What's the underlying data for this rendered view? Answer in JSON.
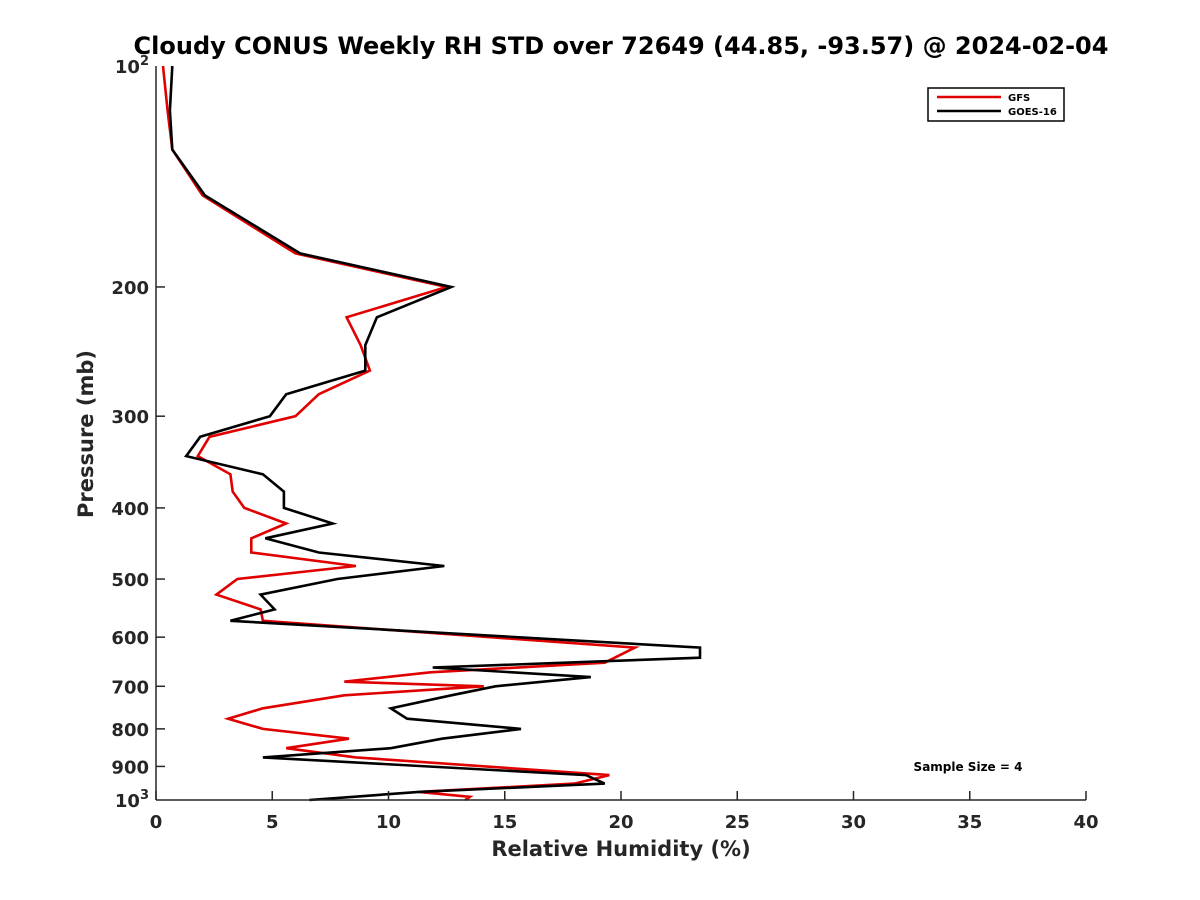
{
  "chart_data": {
    "type": "line",
    "title": "Cloudy CONUS Weekly RH STD over 72649 (44.85, -93.57) @ 2024-02-04",
    "xlabel": "Relative Humidity (%)",
    "ylabel": "Pressure (mb)",
    "xlim": [
      0,
      40
    ],
    "ylim": [
      100,
      1000
    ],
    "y_scale": "log",
    "y_reversed": true,
    "x_ticks": [
      0,
      5,
      10,
      15,
      20,
      25,
      30,
      35,
      40
    ],
    "y_ticks": [
      200,
      300,
      400,
      500,
      600,
      700,
      800,
      900
    ],
    "y_tick_labels": [
      "200",
      "300",
      "400",
      "500",
      "600",
      "700",
      "800",
      "900"
    ],
    "y_min_label": {
      "base": "10",
      "exp": "2"
    },
    "y_max_label": {
      "base": "10",
      "exp": "3"
    },
    "grid": false,
    "legend_position": "top-right",
    "annotation": "Sample Size = 4",
    "series": [
      {
        "name": "GFS",
        "color": "#e00000",
        "points": [
          [
            0.3,
            100
          ],
          [
            0.5,
            115
          ],
          [
            0.7,
            130
          ],
          [
            2.0,
            150
          ],
          [
            6.0,
            180
          ],
          [
            12.5,
            200
          ],
          [
            8.2,
            220
          ],
          [
            8.8,
            240
          ],
          [
            9.2,
            260
          ],
          [
            7.0,
            280
          ],
          [
            6.0,
            300
          ],
          [
            2.3,
            320
          ],
          [
            1.8,
            340
          ],
          [
            3.2,
            360
          ],
          [
            3.3,
            380
          ],
          [
            3.8,
            400
          ],
          [
            5.6,
            420
          ],
          [
            4.1,
            440
          ],
          [
            4.1,
            460
          ],
          [
            8.6,
            480
          ],
          [
            3.5,
            500
          ],
          [
            2.6,
            525
          ],
          [
            4.5,
            550
          ],
          [
            4.6,
            570
          ],
          [
            20.6,
            620
          ],
          [
            19.3,
            650
          ],
          [
            11.8,
            670
          ],
          [
            8.1,
            690
          ],
          [
            14.1,
            700
          ],
          [
            8.1,
            720
          ],
          [
            4.6,
            750
          ],
          [
            3.1,
            775
          ],
          [
            4.6,
            800
          ],
          [
            8.3,
            825
          ],
          [
            5.6,
            850
          ],
          [
            8.6,
            875
          ],
          [
            19.5,
            925
          ],
          [
            18.0,
            950
          ],
          [
            11.3,
            975
          ],
          [
            13.5,
            990
          ],
          [
            13.3,
            1000
          ]
        ]
      },
      {
        "name": "GOES-16",
        "color": "#000000",
        "points": [
          [
            0.7,
            100
          ],
          [
            0.6,
            115
          ],
          [
            0.7,
            130
          ],
          [
            2.1,
            150
          ],
          [
            6.2,
            180
          ],
          [
            12.7,
            200
          ],
          [
            9.5,
            220
          ],
          [
            9.0,
            240
          ],
          [
            9.0,
            260
          ],
          [
            5.6,
            280
          ],
          [
            4.9,
            300
          ],
          [
            1.9,
            320
          ],
          [
            1.3,
            340
          ],
          [
            4.6,
            360
          ],
          [
            5.5,
            380
          ],
          [
            5.5,
            400
          ],
          [
            7.6,
            420
          ],
          [
            4.7,
            440
          ],
          [
            7.0,
            460
          ],
          [
            12.4,
            480
          ],
          [
            7.8,
            500
          ],
          [
            4.5,
            525
          ],
          [
            5.1,
            550
          ],
          [
            3.2,
            570
          ],
          [
            23.4,
            620
          ],
          [
            23.4,
            640
          ],
          [
            11.9,
            660
          ],
          [
            18.7,
            680
          ],
          [
            14.6,
            700
          ],
          [
            12.7,
            720
          ],
          [
            10.1,
            750
          ],
          [
            10.8,
            775
          ],
          [
            15.7,
            800
          ],
          [
            12.3,
            825
          ],
          [
            10.1,
            850
          ],
          [
            4.6,
            875
          ],
          [
            18.5,
            925
          ],
          [
            19.3,
            950
          ],
          [
            11.3,
            975
          ],
          [
            8.5,
            990
          ],
          [
            6.6,
            1000
          ]
        ]
      }
    ]
  }
}
